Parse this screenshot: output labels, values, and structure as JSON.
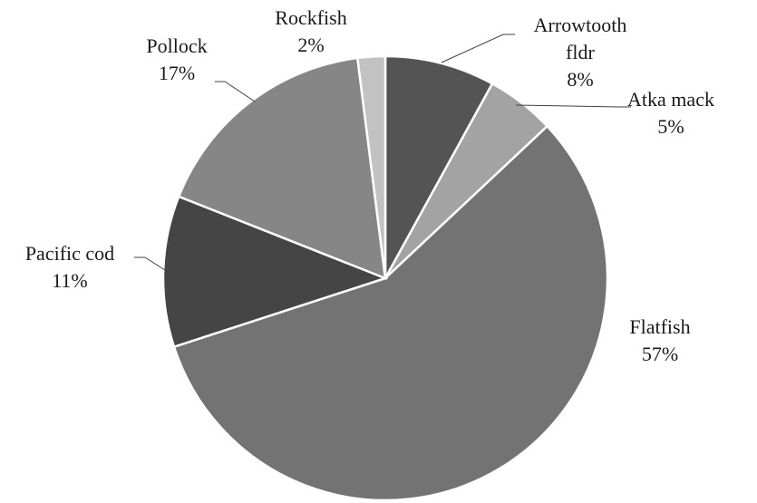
{
  "chart_data": {
    "type": "pie",
    "title": "",
    "slices": [
      {
        "name": "Arrowtooth fldr",
        "label_lines": [
          "Arrowtooth",
          "fldr"
        ],
        "percent_label": "8%",
        "value": 8,
        "color": "#545454"
      },
      {
        "name": "Atka mack",
        "label_lines": [
          "Atka mack"
        ],
        "percent_label": "5%",
        "value": 5,
        "color": "#a3a3a3"
      },
      {
        "name": "Flatfish",
        "label_lines": [
          "Flatfish"
        ],
        "percent_label": "57%",
        "value": 57,
        "color": "#737373"
      },
      {
        "name": "Pacific cod",
        "label_lines": [
          "Pacific cod"
        ],
        "percent_label": "11%",
        "value": 11,
        "color": "#454545"
      },
      {
        "name": "Pollock",
        "label_lines": [
          "Pollock"
        ],
        "percent_label": "17%",
        "value": 17,
        "color": "#868686"
      },
      {
        "name": "Rockfish",
        "label_lines": [
          "Rockfish"
        ],
        "percent_label": "2%",
        "value": 2,
        "color": "#c2c2c2"
      }
    ],
    "start_angle_deg": 0,
    "direction": "clockwise",
    "legend": "none"
  }
}
